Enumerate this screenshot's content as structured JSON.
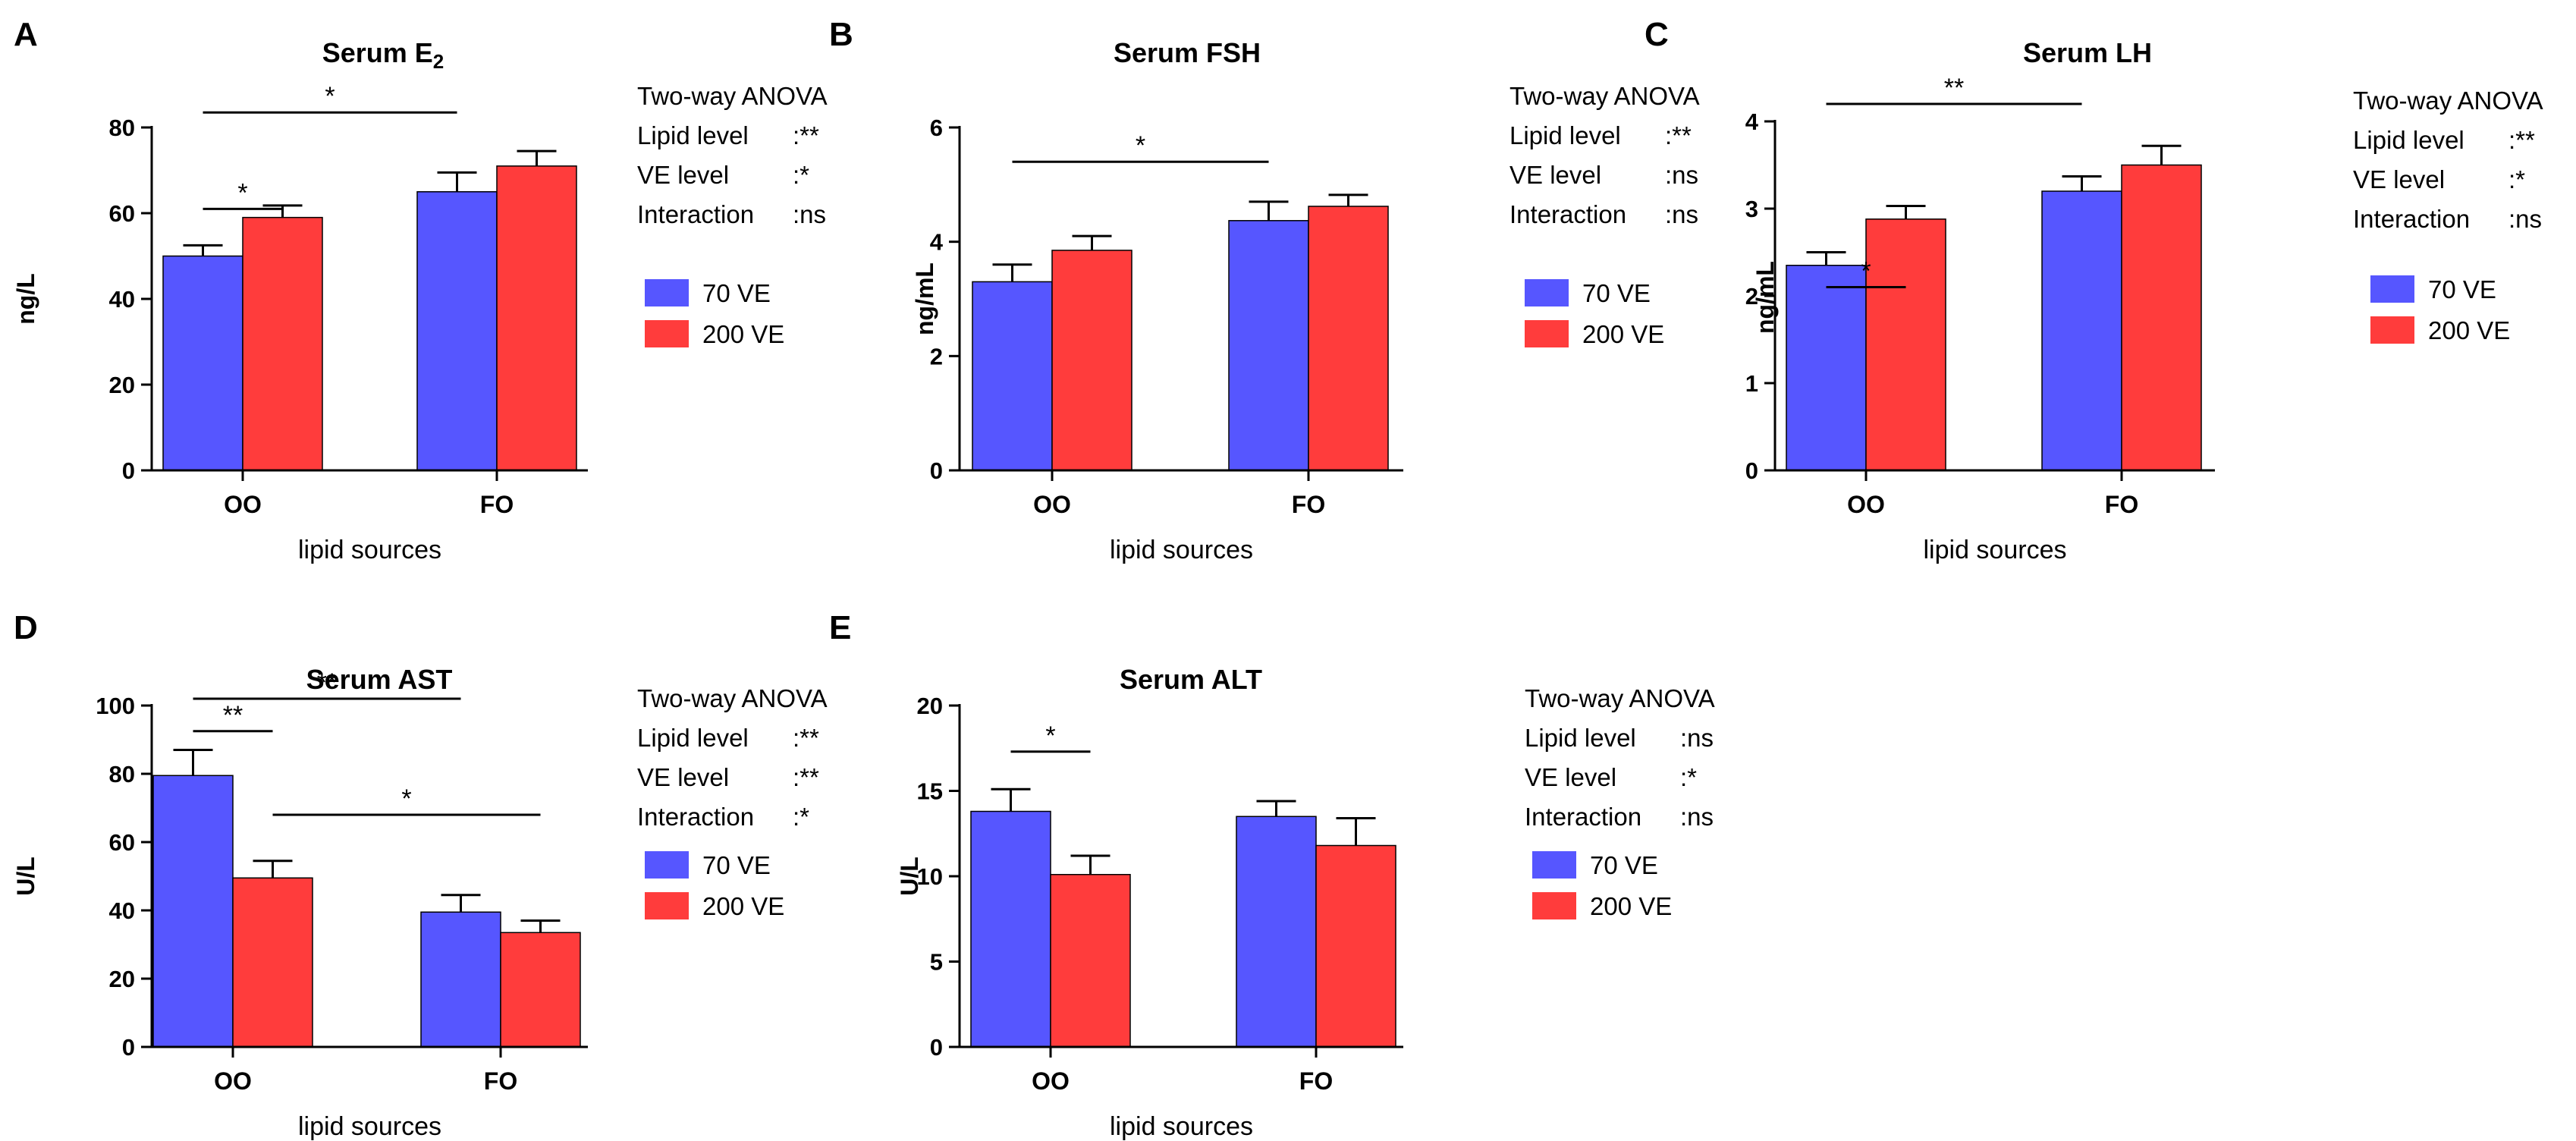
{
  "legend_labels": [
    "70   VE",
    "200 VE"
  ],
  "colors": {
    "blue": "#5656ff",
    "red": "#ff3c3c",
    "axis": "#000000"
  },
  "chart_data": [
    {
      "id": "A",
      "type": "bar",
      "panel_label": "A",
      "title": "Serum E",
      "title_subscript": "2",
      "ylabel": "ng/L",
      "xlabel": "lipid sources",
      "ylim": [
        0,
        80
      ],
      "yticks": [
        "0",
        "20",
        "40",
        "60",
        "80"
      ],
      "categories": [
        "OO",
        "FO"
      ],
      "series": [
        {
          "name": "70   VE",
          "values": [
            50,
            65
          ],
          "errors": [
            2.5,
            4.5
          ]
        },
        {
          "name": "200 VE",
          "values": [
            59,
            71
          ],
          "errors": [
            2.8,
            3.5
          ]
        }
      ],
      "sig_lines": [
        {
          "from": [
            0,
            0
          ],
          "to": [
            0,
            1
          ],
          "level": 61,
          "label": "*"
        },
        {
          "from": [
            0,
            0
          ],
          "to": [
            1,
            0
          ],
          "level": 83.5,
          "label": "*"
        }
      ],
      "anova": {
        "title": "Two-way ANOVA",
        "rows": [
          {
            "label": "Lipid level",
            "value": "**"
          },
          {
            "label": "VE    level",
            "value": "*"
          },
          {
            "label": "Interaction",
            "value": "ns"
          }
        ]
      }
    },
    {
      "id": "B",
      "type": "bar",
      "panel_label": "B",
      "title": "Serum FSH",
      "ylabel": "ng/mL",
      "xlabel": "lipid sources",
      "ylim": [
        0,
        6
      ],
      "yticks": [
        "0",
        "2",
        "4",
        "6"
      ],
      "categories": [
        "OO",
        "FO"
      ],
      "series": [
        {
          "name": "70   VE",
          "values": [
            3.3,
            4.37
          ],
          "errors": [
            0.3,
            0.33
          ]
        },
        {
          "name": "200 VE",
          "values": [
            3.85,
            4.62
          ],
          "errors": [
            0.25,
            0.2
          ]
        }
      ],
      "sig_lines": [
        {
          "from": [
            0,
            0
          ],
          "to": [
            1,
            0
          ],
          "level": 5.4,
          "label": "*"
        }
      ],
      "anova": {
        "title": "Two-way ANOVA",
        "rows": [
          {
            "label": "Lipid level",
            "value": "**"
          },
          {
            "label": "VE    level",
            "value": "ns"
          },
          {
            "label": "Interaction",
            "value": "ns"
          }
        ]
      }
    },
    {
      "id": "C",
      "type": "bar",
      "panel_label": "C",
      "title": "Serum LH",
      "ylabel": "ng/mL",
      "xlabel": "lipid sources",
      "ylim": [
        0,
        4
      ],
      "yticks": [
        "0",
        "1",
        "2",
        "3",
        "4"
      ],
      "categories": [
        "OO",
        "FO"
      ],
      "series": [
        {
          "name": "70   VE",
          "values": [
            2.35,
            3.2
          ],
          "errors": [
            0.15,
            0.17
          ]
        },
        {
          "name": "200 VE",
          "values": [
            2.88,
            3.5
          ],
          "errors": [
            0.15,
            0.22
          ]
        }
      ],
      "sig_lines": [
        {
          "from": [
            0,
            0
          ],
          "to": [
            0,
            1
          ],
          "level": 2.1,
          "label": "*"
        },
        {
          "from": [
            0,
            0
          ],
          "to": [
            1,
            0
          ],
          "level": 4.2,
          "label": "**"
        }
      ],
      "anova": {
        "title": "Two-way ANOVA",
        "rows": [
          {
            "label": "Lipid level",
            "value": "**"
          },
          {
            "label": "VE    level",
            "value": "*"
          },
          {
            "label": "Interaction",
            "value": "ns"
          }
        ]
      }
    },
    {
      "id": "D",
      "type": "bar",
      "panel_label": "D",
      "title": "Serum AST",
      "ylabel": "U/L",
      "xlabel": "lipid sources",
      "ylim": [
        0,
        100
      ],
      "yticks": [
        "0",
        "20",
        "40",
        "60",
        "80",
        "100"
      ],
      "categories": [
        "OO",
        "FO"
      ],
      "series": [
        {
          "name": "70   VE",
          "values": [
            79.5,
            39.5
          ],
          "errors": [
            7.5,
            5
          ]
        },
        {
          "name": "200 VE",
          "values": [
            49.5,
            33.5
          ],
          "errors": [
            5,
            3.5
          ]
        }
      ],
      "sig_lines": [
        {
          "from": [
            0,
            0
          ],
          "to": [
            0,
            1
          ],
          "level": 92.5,
          "label": "**"
        },
        {
          "from": [
            0,
            0
          ],
          "to": [
            1,
            0
          ],
          "level": 102,
          "label": "**"
        },
        {
          "from": [
            0,
            1
          ],
          "to": [
            1,
            1
          ],
          "level": 68,
          "label": "*"
        }
      ],
      "anova": {
        "title": "Two-way ANOVA",
        "rows": [
          {
            "label": "Lipid level",
            "value": "**"
          },
          {
            "label": "VE    level",
            "value": "**"
          },
          {
            "label": "Interaction",
            "value": "*"
          }
        ]
      }
    },
    {
      "id": "E",
      "type": "bar",
      "panel_label": "E",
      "title": "Serum ALT",
      "ylabel": "U/L",
      "xlabel": "lipid sources",
      "ylim": [
        0,
        20
      ],
      "yticks": [
        "0",
        "5",
        "10",
        "15",
        "20"
      ],
      "categories": [
        "OO",
        "FO"
      ],
      "series": [
        {
          "name": "70   VE",
          "values": [
            13.8,
            13.5
          ],
          "errors": [
            1.3,
            0.9
          ]
        },
        {
          "name": "200 VE",
          "values": [
            10.1,
            11.8
          ],
          "errors": [
            1.1,
            1.6
          ]
        }
      ],
      "sig_lines": [
        {
          "from": [
            0,
            0
          ],
          "to": [
            0,
            1
          ],
          "level": 17.3,
          "label": "*"
        }
      ],
      "anova": {
        "title": "Two-way ANOVA",
        "rows": [
          {
            "label": "Lipid level",
            "value": "ns"
          },
          {
            "label": "VE    level",
            "value": "*"
          },
          {
            "label": "Interaction",
            "value": "ns"
          }
        ]
      }
    }
  ]
}
